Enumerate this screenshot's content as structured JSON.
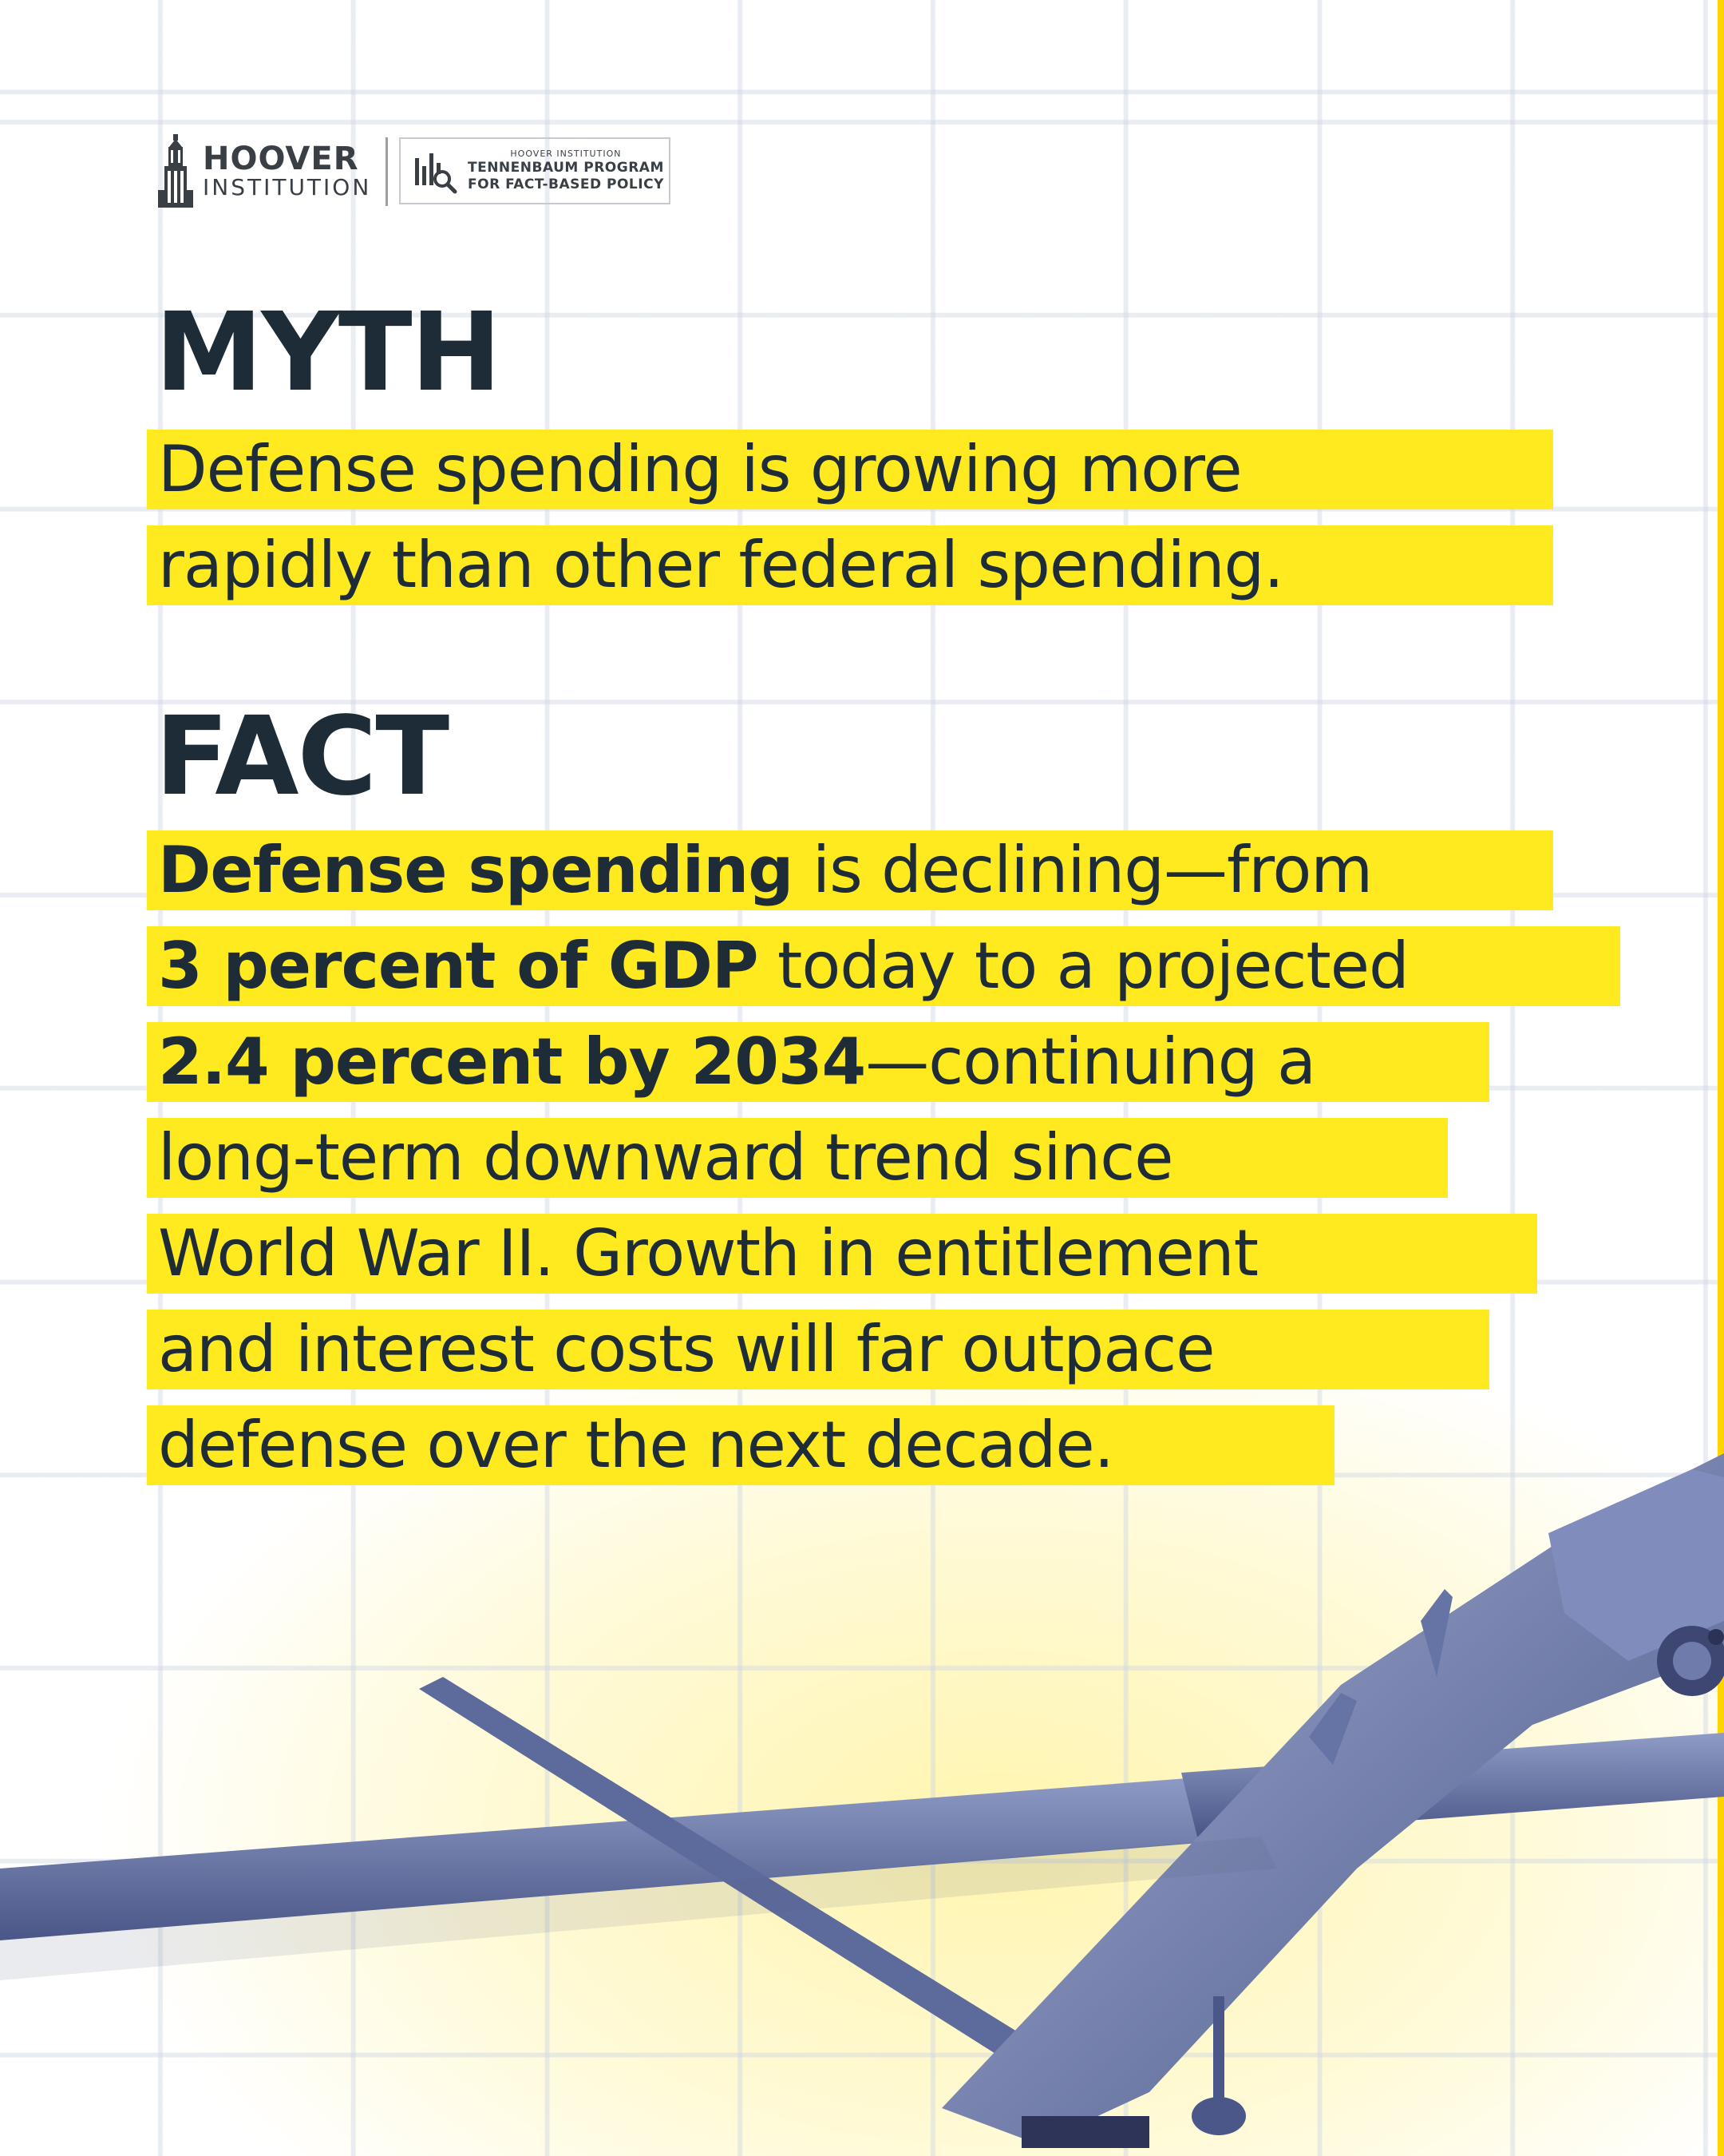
{
  "brand": {
    "hoover_line1": "HOOVER",
    "hoover_line2": "INSTITUTION",
    "program_small": "HOOVER INSTITUTION",
    "program_line1": "TENNENBAUM PROGRAM",
    "program_line2": "FOR FACT-BASED POLICY"
  },
  "myth": {
    "heading": "MYTH",
    "lines": [
      "Defense spending is growing more",
      "rapidly than other federal spending."
    ]
  },
  "fact": {
    "heading": "FACT",
    "line1_bold": "Defense spending",
    "line1_rest": " is declining—from",
    "line2_bold": "3 percent of GDP",
    "line2_rest": " today to a projected",
    "line3_bold": "2.4 percent by 2034",
    "line3_rest": "—continuing a",
    "line4": "long-term downward trend since",
    "line5": "World War II. Growth in entitlement",
    "line6": "and interest costs will far outpace",
    "line7": "defense over the next decade."
  },
  "colors": {
    "highlight": "#ffea1f",
    "text": "#1e2c38",
    "accent_stripe": "#ffd400",
    "drone": "#5a6a9a"
  },
  "icons": [
    "hoover-tower-icon",
    "chart-search-icon",
    "drone-image"
  ]
}
